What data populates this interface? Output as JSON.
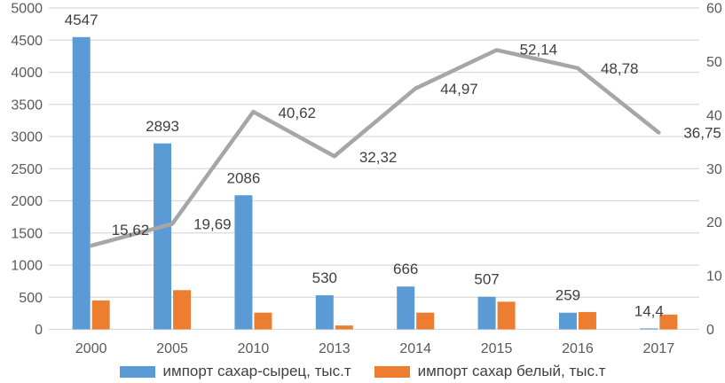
{
  "chart_data": {
    "type": "combo",
    "categories": [
      "2000",
      "2005",
      "2010",
      "2013",
      "2014",
      "2015",
      "2016",
      "2017"
    ],
    "series": [
      {
        "name": "импорт сахар-сырец, тыс.т",
        "type": "bar",
        "axis": "left",
        "color": "#5B9BD5",
        "values": [
          4547,
          2893,
          2086,
          530,
          666,
          507,
          259,
          14.4
        ],
        "data_labels": [
          "4547",
          "2893",
          "2086",
          "530",
          "666",
          "507",
          "259",
          "14,4"
        ]
      },
      {
        "name": "импорт сахар белый, тыс.т",
        "type": "bar",
        "axis": "left",
        "color": "#ED7D31",
        "values": [
          450,
          610,
          260,
          60,
          260,
          430,
          270,
          230
        ],
        "data_labels": []
      },
      {
        "name": "",
        "type": "line",
        "axis": "right",
        "color": "#A6A6A6",
        "values": [
          15.62,
          19.69,
          40.62,
          32.32,
          44.97,
          52.14,
          48.78,
          36.75
        ],
        "data_labels": [
          "15,62",
          "19,69",
          "40,62",
          "32,32",
          "44,97",
          "52,14",
          "48,78",
          "36,75"
        ],
        "label_offsets": [
          [
            23,
            -12
          ],
          [
            24,
            6
          ],
          [
            28,
            7
          ],
          [
            28,
            7
          ],
          [
            28,
            6
          ],
          [
            26,
            5
          ],
          [
            26,
            6
          ],
          [
            28,
            6
          ]
        ]
      }
    ],
    "left_axis": {
      "min": 0,
      "max": 5000,
      "step": 500,
      "tick_labels": [
        "5000",
        "4500",
        "4000",
        "3500",
        "3000",
        "2500",
        "2000",
        "1500",
        "1000",
        "500",
        "0"
      ]
    },
    "right_axis": {
      "min": 0,
      "max": 60,
      "step": 10,
      "tick_labels": [
        "60",
        "50",
        "40",
        "30",
        "20",
        "10",
        "0"
      ]
    },
    "grid": {
      "show": true,
      "color": "#D9D9D9"
    },
    "legend": {
      "position": "bottom",
      "entries": [
        "импорт сахар-сырец, тыс.т",
        "импорт сахар белый, тыс.т"
      ]
    },
    "text_colors": {
      "axis": "#595959",
      "data_labels": "#404040"
    }
  }
}
